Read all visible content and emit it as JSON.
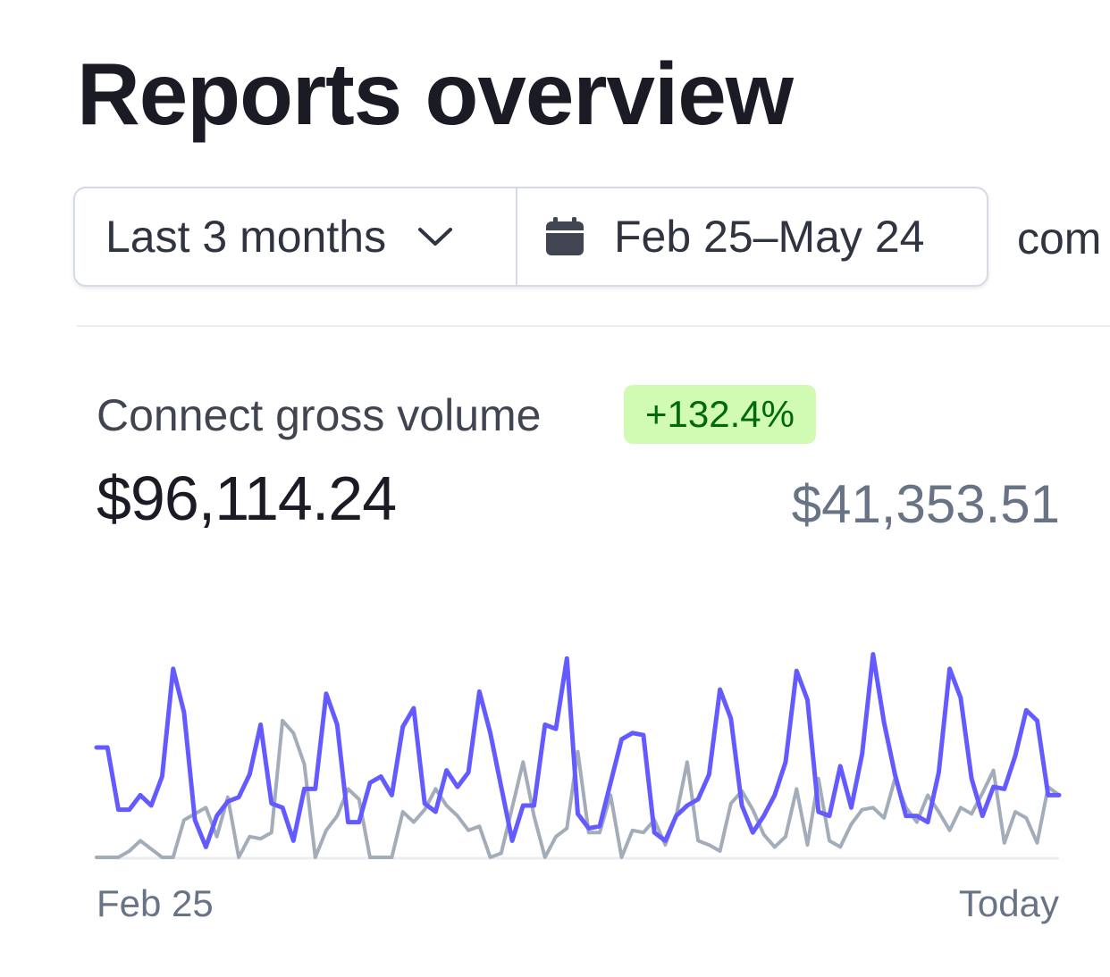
{
  "page": {
    "title": "Reports overview"
  },
  "filters": {
    "range_label": "Last 3 months",
    "range_icon": "chevron-down-icon",
    "date_label": "Feb 25–May 24",
    "date_icon": "calendar-icon",
    "compare_text": "com"
  },
  "metric": {
    "label": "Connect gross volume",
    "change": "+132.4%",
    "value": "$96,114.24",
    "previous_value": "$41,353.51"
  },
  "colors": {
    "current_series": "#635bff",
    "previous_series": "#a3acb9",
    "badge_bg": "#d1fab3",
    "badge_text": "#006908"
  },
  "chart_data": {
    "type": "line",
    "x_start_label": "Feb 25",
    "x_end_label": "Today",
    "grid": false,
    "legend": "none",
    "ylim": [
      0,
      1
    ],
    "series": [
      {
        "role": "current",
        "values": [
          0.53,
          0.53,
          0.23,
          0.23,
          0.3,
          0.25,
          0.39,
          0.91,
          0.7,
          0.18,
          0.05,
          0.2,
          0.27,
          0.29,
          0.4,
          0.64,
          0.26,
          0.24,
          0.08,
          0.33,
          0.33,
          0.79,
          0.64,
          0.17,
          0.17,
          0.36,
          0.39,
          0.3,
          0.63,
          0.72,
          0.26,
          0.22,
          0.42,
          0.34,
          0.41,
          0.8,
          0.6,
          0.34,
          0.08,
          0.25,
          0.25,
          0.64,
          0.62,
          0.96,
          0.21,
          0.14,
          0.15,
          0.36,
          0.57,
          0.6,
          0.59,
          0.12,
          0.08,
          0.2,
          0.25,
          0.28,
          0.4,
          0.81,
          0.67,
          0.25,
          0.12,
          0.2,
          0.3,
          0.46,
          0.9,
          0.76,
          0.22,
          0.2,
          0.44,
          0.24,
          0.5,
          0.98,
          0.65,
          0.4,
          0.2,
          0.2,
          0.17,
          0.41,
          0.91,
          0.77,
          0.38,
          0.2,
          0.34,
          0.33,
          0.49,
          0.71,
          0.66,
          0.3,
          0.3
        ]
      },
      {
        "role": "previous",
        "values": [
          0,
          0,
          0,
          0.03,
          0.08,
          0.04,
          0,
          0,
          0.18,
          0.21,
          0.24,
          0.1,
          0.29,
          0,
          0.1,
          0.09,
          0.12,
          0.66,
          0.6,
          0.45,
          0,
          0.13,
          0.2,
          0.33,
          0.28,
          0,
          0,
          0,
          0.22,
          0.17,
          0.23,
          0.33,
          0.25,
          0.2,
          0.13,
          0.15,
          0,
          0.02,
          0.24,
          0.46,
          0.2,
          0,
          0.1,
          0.14,
          0.51,
          0.12,
          0.12,
          0.3,
          0,
          0.13,
          0.12,
          0.18,
          0.06,
          0.2,
          0.46,
          0.08,
          0.06,
          0.03,
          0.26,
          0.32,
          0.23,
          0.11,
          0.05,
          0.1,
          0.33,
          0.06,
          0.38,
          0.08,
          0.05,
          0.16,
          0.23,
          0.24,
          0.19,
          0.38,
          0.24,
          0.17,
          0.3,
          0.22,
          0.13,
          0.24,
          0.21,
          0.31,
          0.42,
          0.07,
          0.22,
          0.19,
          0.07,
          0.34,
          0.3
        ]
      }
    ]
  }
}
